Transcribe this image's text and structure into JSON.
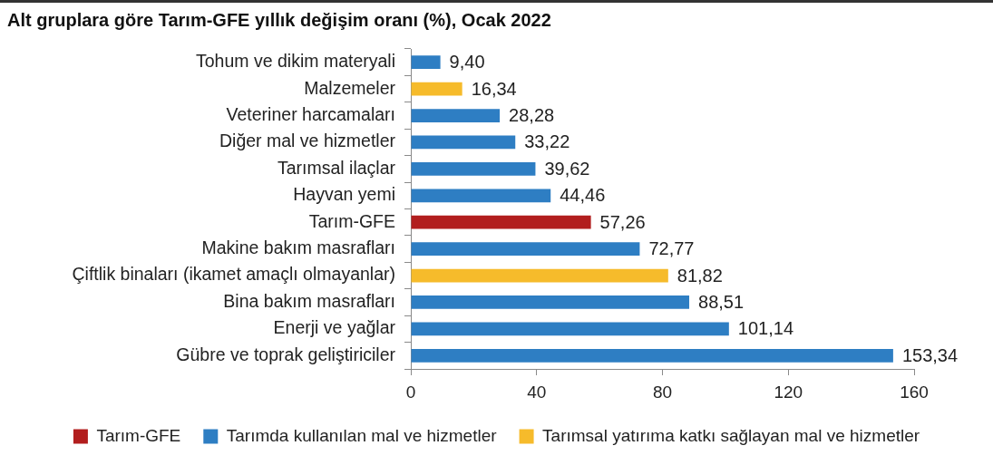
{
  "chart_data": {
    "type": "bar",
    "orientation": "horizontal",
    "title": "Alt gruplara göre Tarım-GFE yıllık değişim oranı (%), Ocak 2022",
    "categories": [
      "Tohum ve dikim materyali",
      "Malzemeler",
      "Veteriner harcamaları",
      "Diğer mal ve hizmetler",
      "Tarımsal ilaçlar",
      "Hayvan yemi",
      "Tarım-GFE",
      "Makine bakım masrafları",
      "Çiftlik binaları (ikamet amaçlı olmayanlar)",
      "Bina bakım masrafları",
      "Enerji ve yağlar",
      "Gübre ve toprak geliştiriciler"
    ],
    "series": [
      {
        "name": "Tarım-GFE",
        "color": "#b21e1e",
        "values": [
          null,
          null,
          null,
          null,
          null,
          null,
          57.26,
          null,
          null,
          null,
          null,
          null
        ],
        "value_labels": [
          null,
          null,
          null,
          null,
          null,
          null,
          "57,26",
          null,
          null,
          null,
          null,
          null
        ]
      },
      {
        "name": "Tarımda kullanılan mal ve hizmetler",
        "color": "#2e7ec3",
        "values": [
          9.4,
          null,
          28.28,
          33.22,
          39.62,
          44.46,
          null,
          72.77,
          null,
          88.51,
          101.14,
          153.34
        ],
        "value_labels": [
          "9,40",
          null,
          "28,28",
          "33,22",
          "39,62",
          "44,46",
          null,
          "72,77",
          null,
          "88,51",
          "101,14",
          "153,34"
        ]
      },
      {
        "name": "Tarımsal yatırıma katkı sağlayan mal ve hizmetler",
        "color": "#f6bb2b",
        "values": [
          null,
          16.34,
          null,
          null,
          null,
          null,
          null,
          null,
          81.82,
          null,
          null,
          null
        ],
        "value_labels": [
          null,
          "16,34",
          null,
          null,
          null,
          null,
          null,
          null,
          "81,82",
          null,
          null,
          null
        ]
      }
    ],
    "xlim": [
      0,
      160
    ],
    "xticks": [
      0,
      40,
      80,
      120,
      160
    ],
    "legend": "bottom"
  }
}
